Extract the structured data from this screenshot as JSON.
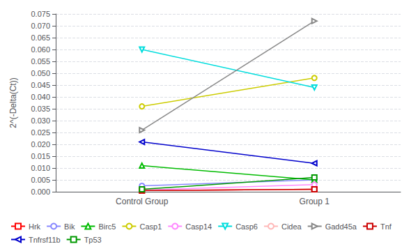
{
  "chart_data": {
    "type": "line",
    "categories": [
      "Control Group",
      "Group 1"
    ],
    "ylabel": "2^(-Delta(Ct))",
    "series": [
      {
        "name": "Hrk",
        "color": "#FF0000",
        "marker": "square",
        "values": [
          0.0005,
          0.001
        ]
      },
      {
        "name": "Bik",
        "color": "#8888FF",
        "marker": "circle",
        "values": [
          0.0025,
          0.005
        ]
      },
      {
        "name": "Birc5",
        "color": "#00BB00",
        "marker": "triangle-up",
        "values": [
          0.011,
          0.005
        ]
      },
      {
        "name": "Casp1",
        "color": "#CCCC00",
        "marker": "circle",
        "values": [
          0.036,
          0.048
        ]
      },
      {
        "name": "Casp14",
        "color": "#FF88FF",
        "marker": "circle",
        "values": [
          0.0007,
          0.003
        ]
      },
      {
        "name": "Casp6",
        "color": "#00DDDD",
        "marker": "triangle-down",
        "values": [
          0.06,
          0.044
        ]
      },
      {
        "name": "Cidea",
        "color": "#FFB8B8",
        "marker": "circle",
        "values": [
          0.0005,
          0.001
        ]
      },
      {
        "name": "Gadd45a",
        "color": "#888888",
        "marker": "triangle-right",
        "values": [
          0.026,
          0.072
        ]
      },
      {
        "name": "Tnf",
        "color": "#CC0000",
        "marker": "square",
        "values": [
          0.0005,
          0.001
        ]
      },
      {
        "name": "Tnfrsf11b",
        "color": "#0000CC",
        "marker": "triangle-left",
        "values": [
          0.021,
          0.012
        ]
      },
      {
        "name": "Tp53",
        "color": "#009900",
        "marker": "square",
        "values": [
          0.001,
          0.006
        ]
      }
    ],
    "ylim": [
      0,
      0.075
    ],
    "yticks": [
      {
        "value": 0,
        "label": "0.000"
      },
      0.005,
      {
        "value": 0.01,
        "label": "0.010"
      },
      0.015,
      {
        "value": 0.02,
        "label": "0.020"
      },
      0.025,
      {
        "value": 0.03,
        "label": "0.030"
      },
      0.035,
      {
        "value": 0.04,
        "label": "0.040"
      },
      0.045,
      {
        "value": 0.05,
        "label": "0.050"
      },
      0.055,
      {
        "value": 0.06,
        "label": "0.060"
      },
      0.065,
      {
        "value": 0.07,
        "label": "0.070"
      },
      0.075
    ],
    "grid": true,
    "legend": "lower left"
  }
}
